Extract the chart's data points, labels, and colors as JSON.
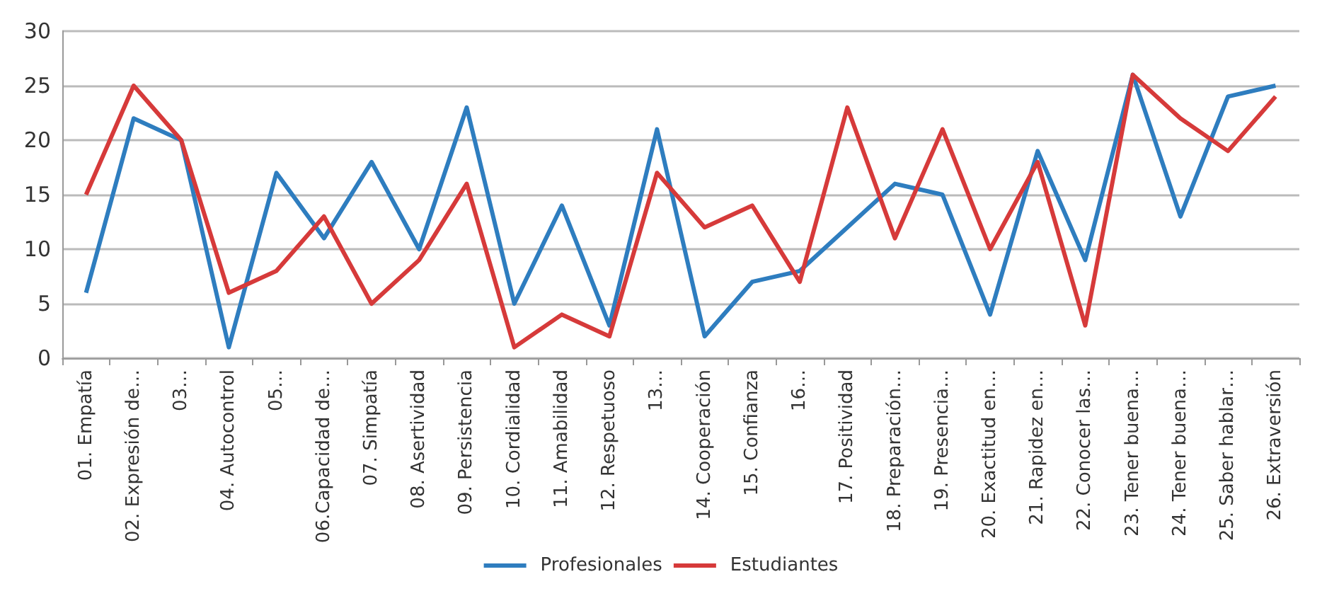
{
  "chart_data": {
    "type": "line",
    "categories": [
      "01. Empatía",
      "02. Expresión de…",
      "03…",
      "04. Autocontrol",
      "05…",
      "06.Capacidad de…",
      "07. Simpatía",
      "08. Asertividad",
      "09. Persistencia",
      "10. Cordialidad",
      "11. Amabilidad",
      "12. Respetuoso",
      "13…",
      "14. Cooperación",
      "15. Confianza",
      "16…",
      "17. Positividad",
      "18. Preparación…",
      "19. Presencia…",
      "20. Exactitud en…",
      "21. Rapidez en…",
      "22. Conocer las…",
      "23. Tener buena…",
      "24. Tener buena…",
      "25. Saber hablar…",
      "26. Extraversión"
    ],
    "series": [
      {
        "name": "Profesionales",
        "color": "#2e7dbf",
        "values": [
          6,
          22,
          20,
          1,
          17,
          11,
          18,
          10,
          23,
          5,
          14,
          3,
          21,
          2,
          7,
          8,
          12,
          16,
          15,
          4,
          19,
          9,
          26,
          13,
          24,
          25
        ]
      },
      {
        "name": "Estudiantes",
        "color": "#d63a3a",
        "values": [
          15,
          25,
          20,
          6,
          8,
          13,
          5,
          9,
          16,
          1,
          4,
          2,
          17,
          12,
          14,
          7,
          23,
          11,
          21,
          10,
          18,
          3,
          26,
          22,
          19,
          24
        ]
      }
    ],
    "ylim": [
      0,
      30
    ],
    "yticks": [
      0,
      5,
      10,
      15,
      20,
      25,
      30
    ],
    "grid": "y",
    "legend": "bottom",
    "marker": "none",
    "line_style": "solid"
  }
}
